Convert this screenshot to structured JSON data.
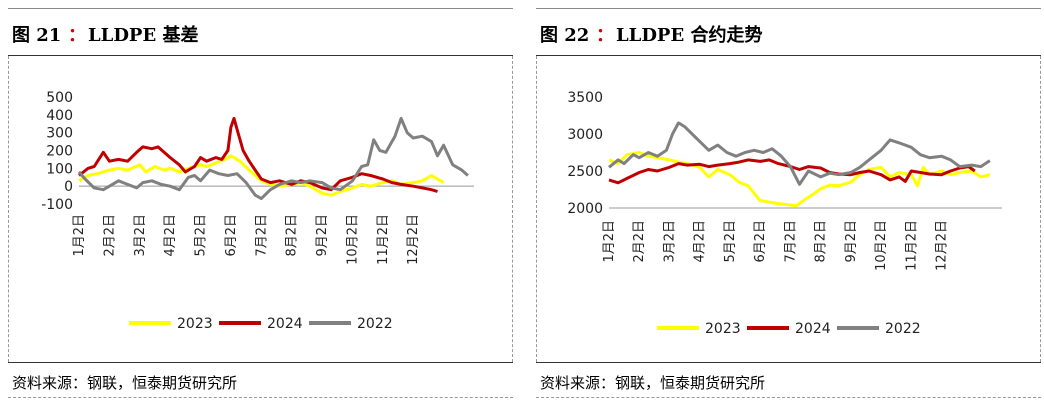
{
  "panels": [
    {
      "title_label": "图 21",
      "title_colon": "：",
      "title_name": "LLDPE 基差",
      "source": "资料来源：钢联，恒泰期货研究所"
    },
    {
      "title_label": "图 22",
      "title_colon": "：",
      "title_name": "LLDPE 合约走势",
      "source": "资料来源：钢联，恒泰期货研究所"
    }
  ],
  "colors": {
    "y2023": "#ffff00",
    "y2024": "#c00000",
    "y2022": "#808080"
  },
  "chart_data": [
    {
      "type": "line",
      "title": "LLDPE 基差",
      "ylim": [
        -100,
        500
      ],
      "yticks": [
        -100,
        0,
        100,
        200,
        300,
        400,
        500
      ],
      "categories": [
        "1月2日",
        "2月2日",
        "3月2日",
        "4月2日",
        "5月2日",
        "6月2日",
        "7月2日",
        "8月2日",
        "9月2日",
        "10月2日",
        "11月2日",
        "12月2日"
      ],
      "series": [
        {
          "name": "2023",
          "values": [
            [
              0,
              30
            ],
            [
              0.3,
              60
            ],
            [
              0.6,
              70
            ],
            [
              1.0,
              90
            ],
            [
              1.3,
              100
            ],
            [
              1.6,
              90
            ],
            [
              2.0,
              120
            ],
            [
              2.2,
              80
            ],
            [
              2.5,
              110
            ],
            [
              2.8,
              90
            ],
            [
              3.0,
              100
            ],
            [
              3.3,
              80
            ],
            [
              3.6,
              100
            ],
            [
              4.0,
              120
            ],
            [
              4.2,
              110
            ],
            [
              4.5,
              130
            ],
            [
              4.8,
              150
            ],
            [
              5.0,
              170
            ],
            [
              5.3,
              140
            ],
            [
              5.6,
              90
            ],
            [
              6.0,
              30
            ],
            [
              6.3,
              10
            ],
            [
              6.6,
              0
            ],
            [
              7.0,
              10
            ],
            [
              7.3,
              20
            ],
            [
              7.6,
              0
            ],
            [
              8.0,
              -40
            ],
            [
              8.3,
              -50
            ],
            [
              8.6,
              -30
            ],
            [
              9.0,
              -10
            ],
            [
              9.3,
              10
            ],
            [
              9.6,
              0
            ],
            [
              10.0,
              20
            ],
            [
              10.3,
              30
            ],
            [
              10.6,
              10
            ],
            [
              11.0,
              20
            ],
            [
              11.3,
              30
            ],
            [
              11.6,
              60
            ],
            [
              11.8,
              40
            ],
            [
              12.0,
              20
            ]
          ]
        },
        {
          "name": "2024",
          "values": [
            [
              0,
              60
            ],
            [
              0.3,
              100
            ],
            [
              0.5,
              110
            ],
            [
              0.8,
              190
            ],
            [
              1.0,
              140
            ],
            [
              1.3,
              150
            ],
            [
              1.6,
              140
            ],
            [
              1.9,
              190
            ],
            [
              2.1,
              220
            ],
            [
              2.4,
              210
            ],
            [
              2.6,
              220
            ],
            [
              2.8,
              190
            ],
            [
              3.0,
              160
            ],
            [
              3.3,
              120
            ],
            [
              3.5,
              80
            ],
            [
              3.8,
              110
            ],
            [
              4.0,
              160
            ],
            [
              4.2,
              140
            ],
            [
              4.5,
              160
            ],
            [
              4.7,
              150
            ],
            [
              4.9,
              200
            ],
            [
              5.0,
              330
            ],
            [
              5.1,
              380
            ],
            [
              5.2,
              320
            ],
            [
              5.4,
              200
            ],
            [
              5.6,
              140
            ],
            [
              5.8,
              90
            ],
            [
              6.0,
              40
            ],
            [
              6.3,
              20
            ],
            [
              6.6,
              30
            ],
            [
              7.0,
              10
            ],
            [
              7.3,
              30
            ],
            [
              7.6,
              20
            ],
            [
              8.0,
              -10
            ],
            [
              8.3,
              -20
            ],
            [
              8.6,
              30
            ],
            [
              9.0,
              50
            ],
            [
              9.3,
              70
            ],
            [
              9.6,
              60
            ],
            [
              10.0,
              40
            ],
            [
              10.3,
              20
            ],
            [
              10.6,
              10
            ],
            [
              11.0,
              0
            ],
            [
              11.3,
              -10
            ],
            [
              11.6,
              -20
            ],
            [
              11.8,
              -30
            ]
          ]
        },
        {
          "name": "2022",
          "values": [
            [
              0,
              80
            ],
            [
              0.2,
              40
            ],
            [
              0.5,
              -10
            ],
            [
              0.8,
              -20
            ],
            [
              1.0,
              0
            ],
            [
              1.3,
              30
            ],
            [
              1.6,
              10
            ],
            [
              1.9,
              -10
            ],
            [
              2.1,
              20
            ],
            [
              2.4,
              30
            ],
            [
              2.7,
              10
            ],
            [
              3.0,
              0
            ],
            [
              3.3,
              -20
            ],
            [
              3.6,
              50
            ],
            [
              3.8,
              60
            ],
            [
              4.0,
              30
            ],
            [
              4.3,
              90
            ],
            [
              4.6,
              70
            ],
            [
              4.9,
              60
            ],
            [
              5.2,
              70
            ],
            [
              5.5,
              20
            ],
            [
              5.8,
              -50
            ],
            [
              6.0,
              -70
            ],
            [
              6.3,
              -20
            ],
            [
              6.6,
              10
            ],
            [
              7.0,
              30
            ],
            [
              7.3,
              20
            ],
            [
              7.6,
              30
            ],
            [
              8.0,
              20
            ],
            [
              8.3,
              -10
            ],
            [
              8.6,
              -20
            ],
            [
              9.0,
              30
            ],
            [
              9.3,
              110
            ],
            [
              9.5,
              120
            ],
            [
              9.7,
              260
            ],
            [
              9.9,
              200
            ],
            [
              10.1,
              190
            ],
            [
              10.4,
              280
            ],
            [
              10.6,
              380
            ],
            [
              10.8,
              300
            ],
            [
              11.0,
              270
            ],
            [
              11.3,
              280
            ],
            [
              11.6,
              250
            ],
            [
              11.8,
              170
            ],
            [
              12.0,
              230
            ],
            [
              12.3,
              120
            ],
            [
              12.6,
              90
            ],
            [
              12.8,
              60
            ]
          ]
        }
      ]
    },
    {
      "type": "line",
      "title": "LLDPE 合约走势",
      "ylim": [
        2000,
        3500
      ],
      "yticks": [
        2000,
        2500,
        3000,
        3500
      ],
      "categories": [
        "1月2日",
        "2月2日",
        "3月2日",
        "4月2日",
        "5月2日",
        "6月2日",
        "7月2日",
        "8月2日",
        "9月2日",
        "10月2日",
        "11月2日",
        "12月2日"
      ],
      "series": [
        {
          "name": "2023",
          "values": [
            [
              0,
              2650
            ],
            [
              0.3,
              2600
            ],
            [
              0.6,
              2720
            ],
            [
              1.0,
              2750
            ],
            [
              1.3,
              2700
            ],
            [
              1.6,
              2680
            ],
            [
              2.0,
              2650
            ],
            [
              2.3,
              2620
            ],
            [
              2.6,
              2600
            ],
            [
              3.0,
              2550
            ],
            [
              3.3,
              2420
            ],
            [
              3.6,
              2520
            ],
            [
              4.0,
              2450
            ],
            [
              4.3,
              2350
            ],
            [
              4.6,
              2300
            ],
            [
              4.9,
              2150
            ],
            [
              5.0,
              2100
            ],
            [
              5.3,
              2080
            ],
            [
              5.6,
              2060
            ],
            [
              6.0,
              2040
            ],
            [
              6.2,
              2030
            ],
            [
              6.5,
              2120
            ],
            [
              6.8,
              2200
            ],
            [
              7.0,
              2260
            ],
            [
              7.3,
              2310
            ],
            [
              7.6,
              2300
            ],
            [
              8.0,
              2350
            ],
            [
              8.3,
              2450
            ],
            [
              8.6,
              2520
            ],
            [
              9.0,
              2550
            ],
            [
              9.3,
              2420
            ],
            [
              9.6,
              2480
            ],
            [
              10.0,
              2450
            ],
            [
              10.2,
              2300
            ],
            [
              10.4,
              2550
            ],
            [
              10.6,
              2450
            ],
            [
              11.0,
              2500
            ],
            [
              11.3,
              2450
            ],
            [
              11.6,
              2480
            ],
            [
              12.0,
              2500
            ],
            [
              12.3,
              2420
            ],
            [
              12.6,
              2450
            ]
          ]
        },
        {
          "name": "2024",
          "values": [
            [
              0,
              2380
            ],
            [
              0.3,
              2340
            ],
            [
              0.6,
              2400
            ],
            [
              1.0,
              2480
            ],
            [
              1.3,
              2520
            ],
            [
              1.6,
              2500
            ],
            [
              2.0,
              2550
            ],
            [
              2.3,
              2600
            ],
            [
              2.6,
              2580
            ],
            [
              3.0,
              2590
            ],
            [
              3.3,
              2560
            ],
            [
              3.6,
              2580
            ],
            [
              4.0,
              2600
            ],
            [
              4.3,
              2620
            ],
            [
              4.6,
              2650
            ],
            [
              5.0,
              2630
            ],
            [
              5.3,
              2650
            ],
            [
              5.6,
              2600
            ],
            [
              6.0,
              2560
            ],
            [
              6.3,
              2520
            ],
            [
              6.6,
              2560
            ],
            [
              7.0,
              2540
            ],
            [
              7.3,
              2480
            ],
            [
              7.6,
              2460
            ],
            [
              8.0,
              2450
            ],
            [
              8.3,
              2480
            ],
            [
              8.6,
              2500
            ],
            [
              9.0,
              2450
            ],
            [
              9.3,
              2380
            ],
            [
              9.6,
              2420
            ],
            [
              9.8,
              2360
            ],
            [
              10.0,
              2500
            ],
            [
              10.3,
              2480
            ],
            [
              10.6,
              2460
            ],
            [
              11.0,
              2450
            ],
            [
              11.3,
              2500
            ],
            [
              11.6,
              2540
            ],
            [
              11.9,
              2560
            ],
            [
              12.1,
              2500
            ]
          ]
        },
        {
          "name": "2022",
          "values": [
            [
              0,
              2550
            ],
            [
              0.3,
              2650
            ],
            [
              0.5,
              2600
            ],
            [
              0.8,
              2720
            ],
            [
              1.0,
              2680
            ],
            [
              1.3,
              2750
            ],
            [
              1.6,
              2700
            ],
            [
              1.9,
              2780
            ],
            [
              2.1,
              3000
            ],
            [
              2.3,
              3150
            ],
            [
              2.5,
              3100
            ],
            [
              2.7,
              3020
            ],
            [
              3.0,
              2900
            ],
            [
              3.3,
              2780
            ],
            [
              3.6,
              2850
            ],
            [
              3.9,
              2750
            ],
            [
              4.2,
              2700
            ],
            [
              4.5,
              2750
            ],
            [
              4.8,
              2780
            ],
            [
              5.1,
              2750
            ],
            [
              5.4,
              2800
            ],
            [
              5.7,
              2700
            ],
            [
              6.0,
              2560
            ],
            [
              6.3,
              2320
            ],
            [
              6.6,
              2500
            ],
            [
              7.0,
              2420
            ],
            [
              7.3,
              2470
            ],
            [
              7.6,
              2450
            ],
            [
              8.0,
              2480
            ],
            [
              8.3,
              2550
            ],
            [
              8.6,
              2650
            ],
            [
              9.0,
              2780
            ],
            [
              9.3,
              2920
            ],
            [
              9.6,
              2880
            ],
            [
              10.0,
              2820
            ],
            [
              10.3,
              2720
            ],
            [
              10.6,
              2680
            ],
            [
              11.0,
              2700
            ],
            [
              11.3,
              2650
            ],
            [
              11.6,
              2560
            ],
            [
              12.0,
              2580
            ],
            [
              12.3,
              2560
            ],
            [
              12.6,
              2640
            ]
          ]
        }
      ]
    }
  ]
}
